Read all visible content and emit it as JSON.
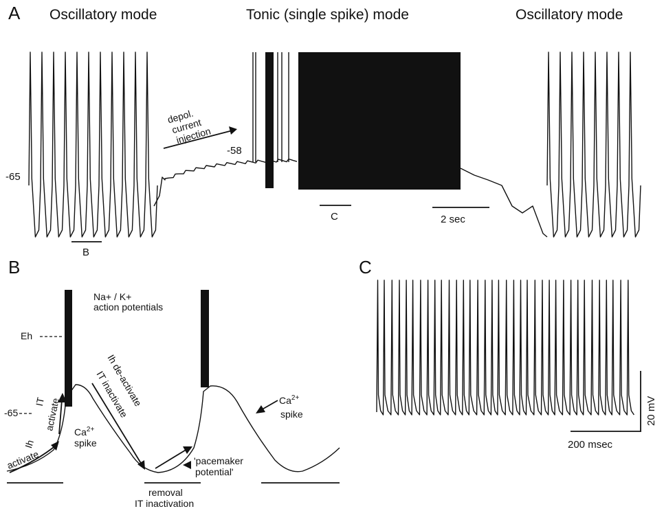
{
  "panel_a": {
    "letter": "A",
    "mode_left": "Oscillatory mode",
    "mode_center": "Tonic (single spike) mode",
    "mode_right": "Oscillatory mode",
    "arrow_label_1": "depol.",
    "arrow_label_2": "current",
    "arrow_label_3": "injection",
    "value_58": "-58",
    "value_65": "-65",
    "bar_b": "B",
    "bar_c": "C",
    "scale_time": "2 sec"
  },
  "panel_b": {
    "letter": "B",
    "ap_line1": "Na+ / K+",
    "ap_line2": "action potentials",
    "eh_label": "Eh",
    "v65_label": "-65",
    "it_label": "IT",
    "ih_label": "Ih",
    "activate_upper": "activate",
    "activate_lower": "activate",
    "ca_spike_left": "Ca2+ spike",
    "ih_deactivate": "Ih  de-activate",
    "it_inactivate": "IT  inactivate",
    "pacemaker": "'pacemaker potential'",
    "ca_spike_right": "Ca2+ spike",
    "removal": "removal",
    "it_inactivation": "IT  inactivation"
  },
  "panel_c": {
    "letter": "C",
    "scale_mv": "20 mV",
    "scale_ms": "200 msec"
  }
}
